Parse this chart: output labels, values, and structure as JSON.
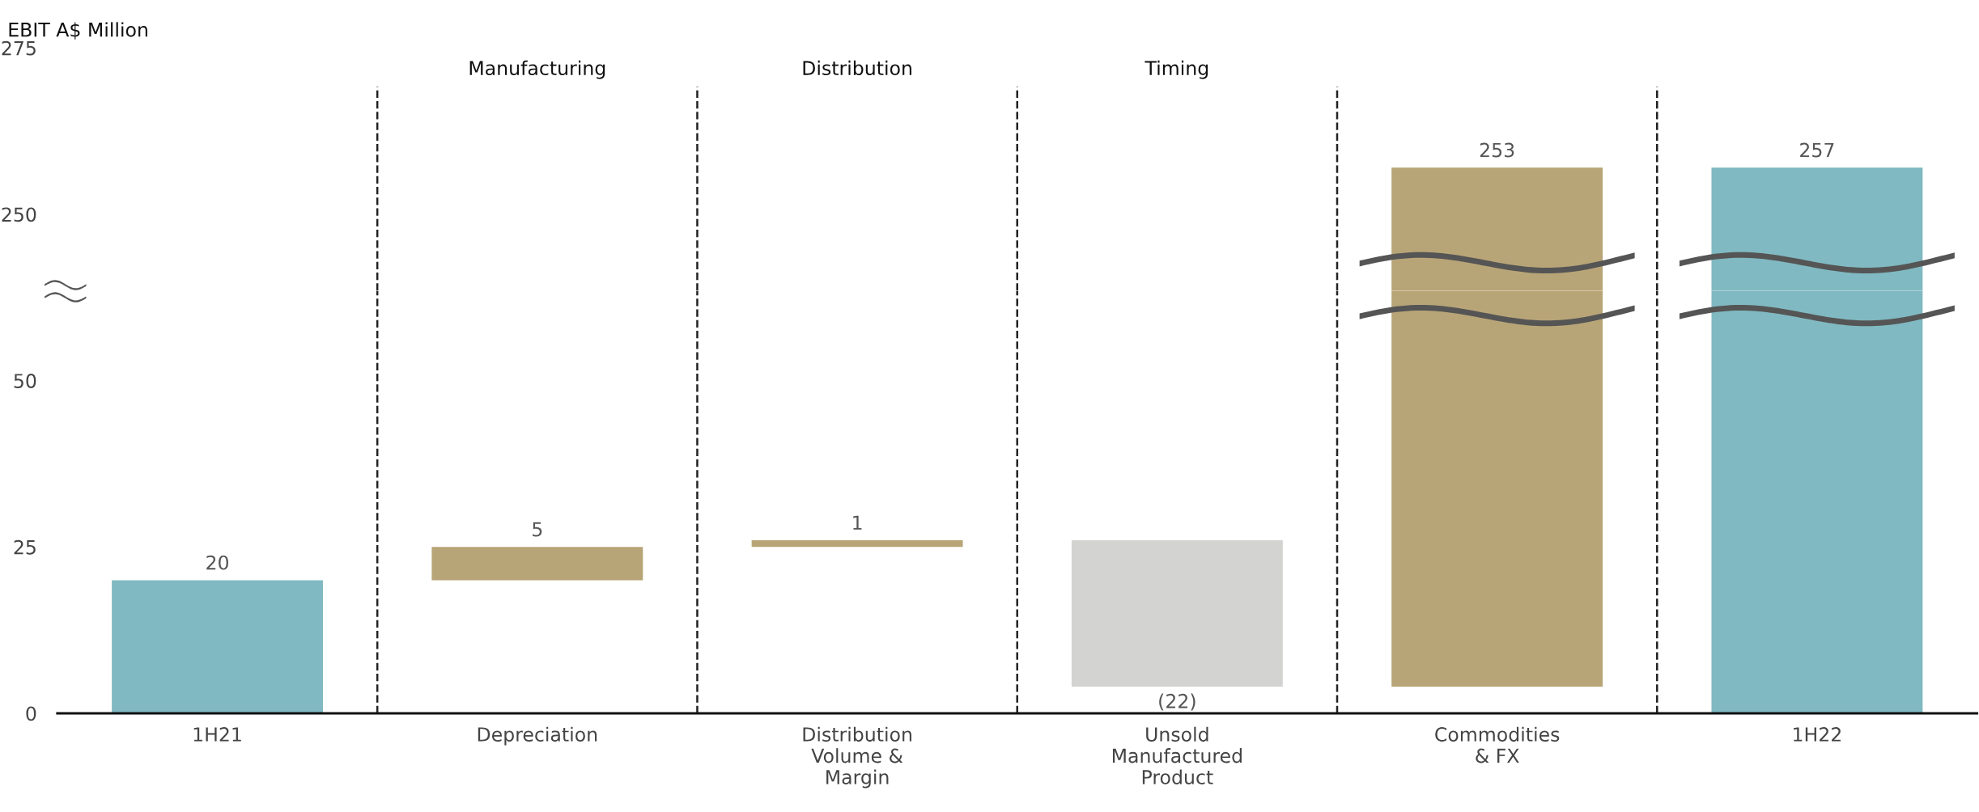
{
  "chart_data": [
    {
      "type": "bar",
      "ylabel": "EBIT A$ Million",
      "values": [
        null,
        null,
        null,
        null,
        253,
        257
      ],
      "base": [
        null,
        null,
        null,
        null,
        4,
        0
      ],
      "colors": [
        "#80b9c1",
        "#b8a577",
        "#b8a577",
        "#d3d3d1",
        "#b8a577",
        "#80b9c1"
      ],
      "value_labels": [
        null,
        null,
        null,
        null,
        "253",
        "257"
      ],
      "ylim": [
        238.5,
        275
      ],
      "yticks": [
        250,
        275
      ],
      "tick_labels": "y",
      "annotations": [
        "Manufacturing",
        "Distribution",
        "Timing"
      ]
    },
    {
      "type": "bar",
      "categories": [
        "1H21",
        "Depreciation",
        "Distribution\nVolume &\nMargin",
        "Unsold\nManufactured\nProduct",
        "Commodities\n& FX",
        "1H22"
      ],
      "values": [
        20,
        5,
        1,
        -22,
        253,
        257
      ],
      "base": [
        0,
        20,
        25,
        26,
        4,
        0
      ],
      "colors": [
        "#80b9c1",
        "#b8a577",
        "#b8a577",
        "#d3d3d1",
        "#b8a577",
        "#80b9c1"
      ],
      "value_labels": [
        "20",
        "5",
        "1",
        "(22)",
        null,
        null
      ],
      "ylim": [
        0,
        63.5
      ],
      "yticks": [
        0,
        25,
        50
      ]
    }
  ]
}
